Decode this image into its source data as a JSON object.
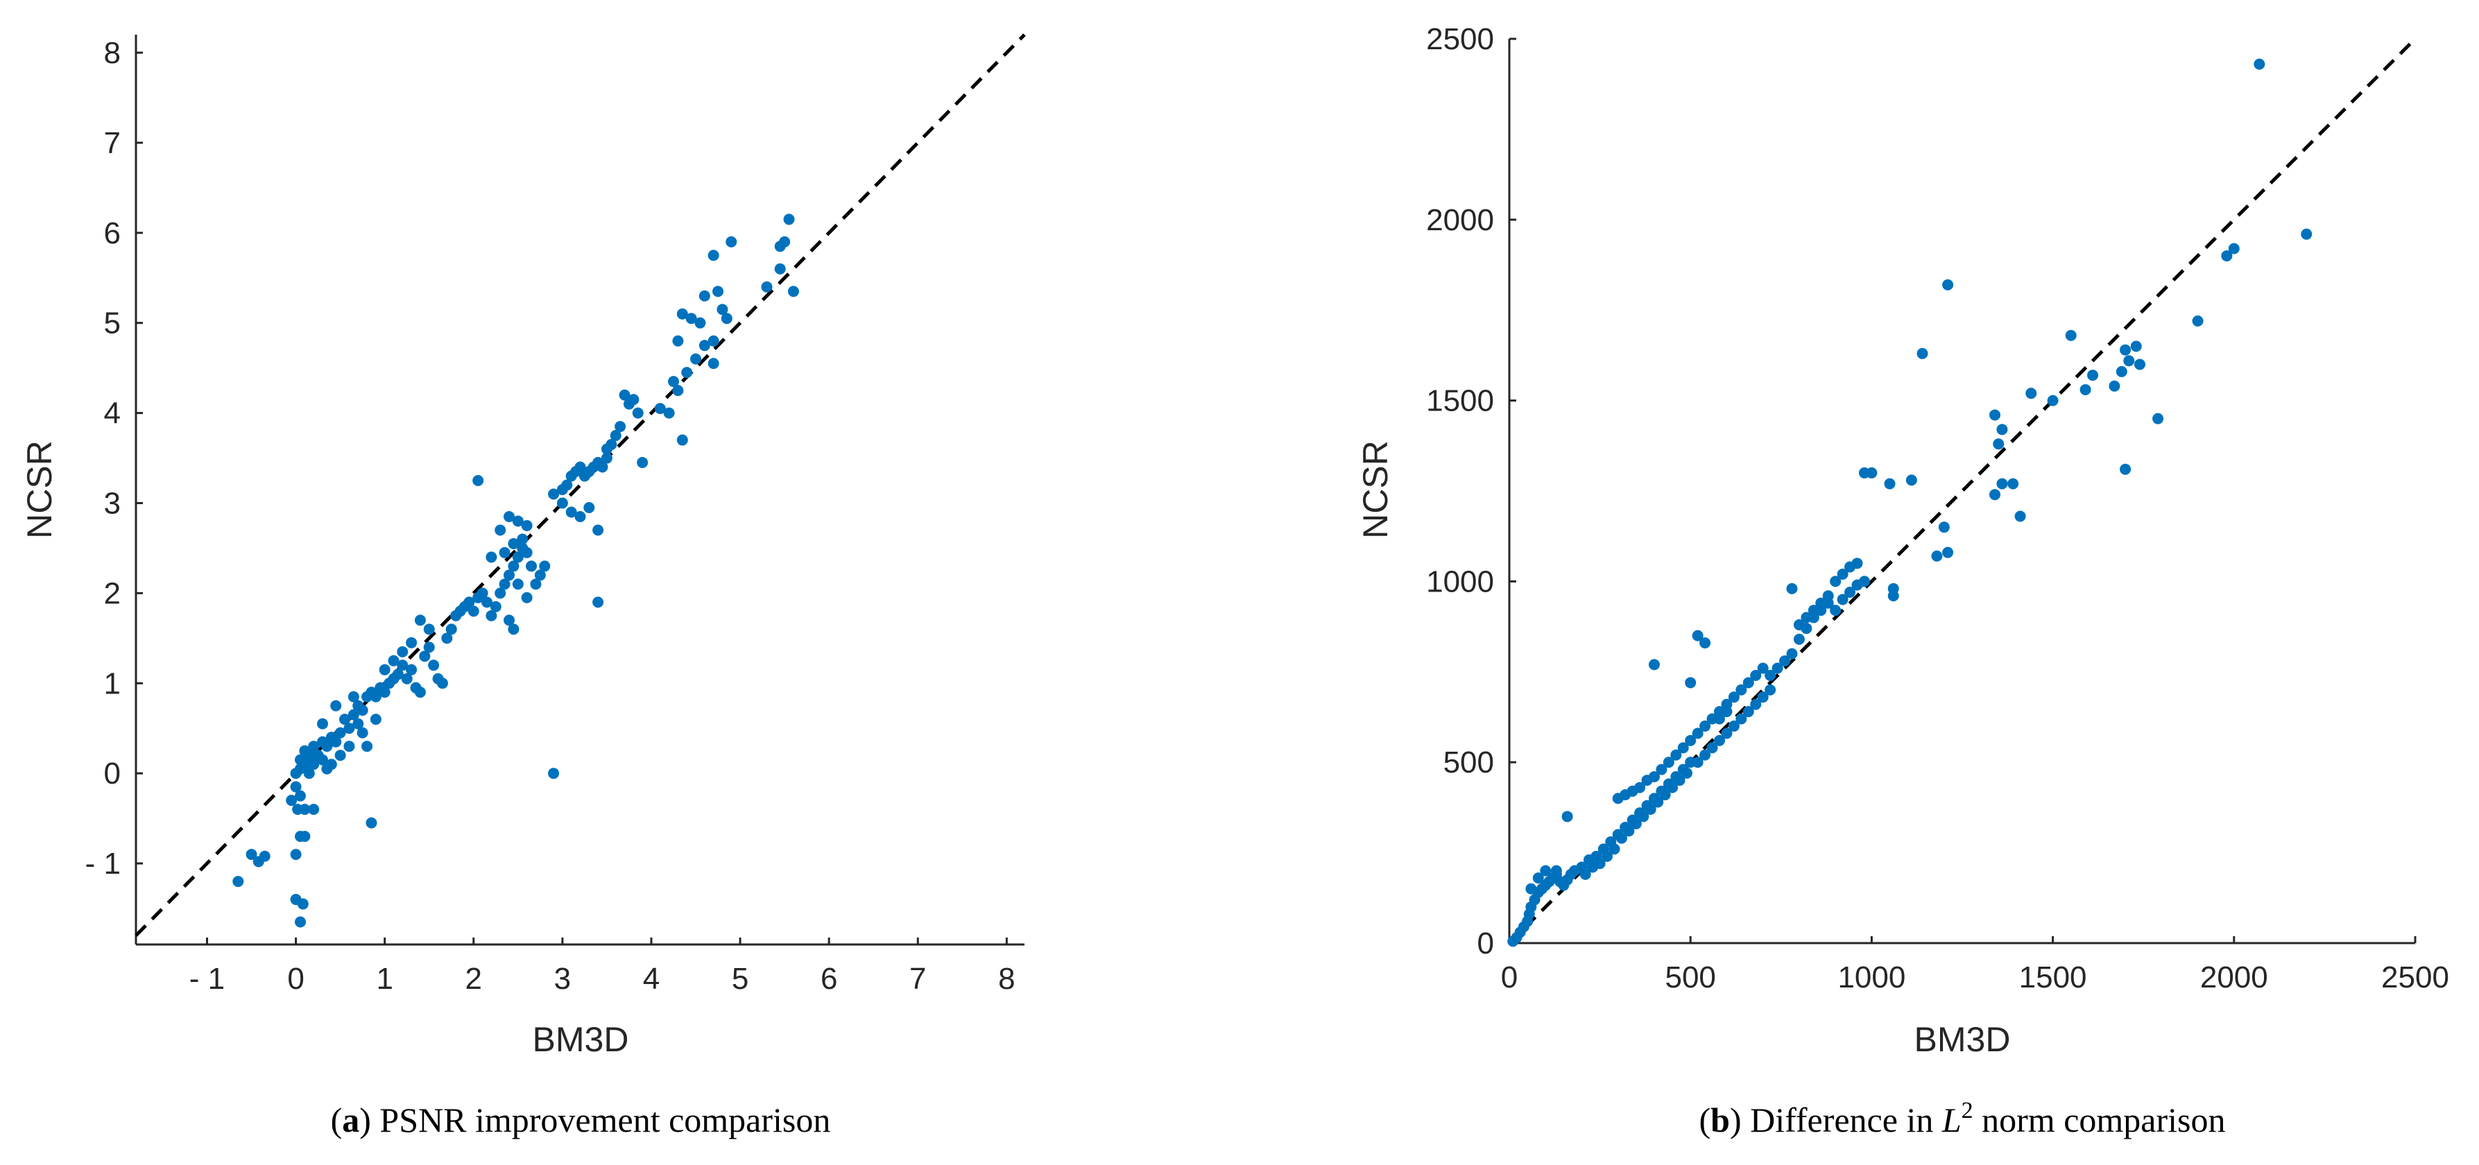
{
  "chart_data": [
    {
      "type": "scatter",
      "xlabel": "BM3D",
      "ylabel": "NCSR",
      "caption": {
        "letter": "a",
        "text": "PSNR improvement comparison"
      },
      "xlim": [
        -1.8,
        8.2
      ],
      "ylim": [
        -1.9,
        8.2
      ],
      "xticks": [
        -1,
        0,
        1,
        2,
        3,
        4,
        5,
        6,
        7,
        8
      ],
      "xtick_labels": [
        "- 1",
        "0",
        "1",
        "2",
        "3",
        "4",
        "5",
        "6",
        "7",
        "8"
      ],
      "yticks": [
        -1,
        0,
        1,
        2,
        3,
        4,
        5,
        6,
        7,
        8
      ],
      "ytick_labels": [
        "- 1",
        "0",
        "1",
        "2",
        "3",
        "4",
        "5",
        "6",
        "7",
        "8"
      ],
      "reference_line": "y = x (dashed)",
      "marker_color": "#0072BD",
      "points": [
        [
          -0.65,
          -1.2
        ],
        [
          -0.5,
          -0.9
        ],
        [
          -0.42,
          -0.98
        ],
        [
          -0.35,
          -0.92
        ],
        [
          0.0,
          -1.4
        ],
        [
          0.05,
          -1.65
        ],
        [
          0.08,
          -1.45
        ],
        [
          0.0,
          -0.9
        ],
        [
          0.05,
          -0.7
        ],
        [
          0.1,
          -0.7
        ],
        [
          0.02,
          -0.4
        ],
        [
          0.1,
          -0.4
        ],
        [
          0.2,
          -0.4
        ],
        [
          0.05,
          -0.25
        ],
        [
          -0.05,
          -0.3
        ],
        [
          0.0,
          -0.15
        ],
        [
          0.0,
          0.0
        ],
        [
          0.05,
          0.05
        ],
        [
          0.1,
          0.1
        ],
        [
          0.05,
          0.15
        ],
        [
          0.15,
          0.0
        ],
        [
          0.2,
          0.1
        ],
        [
          0.1,
          0.25
        ],
        [
          0.15,
          0.2
        ],
        [
          0.25,
          0.2
        ],
        [
          0.3,
          0.15
        ],
        [
          0.2,
          0.3
        ],
        [
          0.3,
          0.35
        ],
        [
          0.35,
          0.3
        ],
        [
          0.4,
          0.4
        ],
        [
          0.45,
          0.35
        ],
        [
          0.4,
          0.1
        ],
        [
          0.35,
          0.05
        ],
        [
          0.5,
          0.45
        ],
        [
          0.6,
          0.5
        ],
        [
          0.55,
          0.6
        ],
        [
          0.65,
          0.65
        ],
        [
          0.7,
          0.75
        ],
        [
          0.75,
          0.7
        ],
        [
          0.8,
          0.85
        ],
        [
          0.85,
          0.9
        ],
        [
          0.9,
          0.85
        ],
        [
          0.7,
          0.55
        ],
        [
          0.75,
          0.45
        ],
        [
          0.6,
          0.3
        ],
        [
          0.5,
          0.2
        ],
        [
          0.3,
          0.55
        ],
        [
          0.45,
          0.75
        ],
        [
          0.65,
          0.85
        ],
        [
          0.8,
          0.3
        ],
        [
          0.9,
          0.6
        ],
        [
          0.95,
          0.95
        ],
        [
          1.0,
          0.9
        ],
        [
          1.05,
          1.0
        ],
        [
          1.1,
          1.05
        ],
        [
          1.15,
          1.1
        ],
        [
          1.2,
          1.2
        ],
        [
          1.25,
          1.05
        ],
        [
          1.3,
          1.15
        ],
        [
          1.35,
          0.95
        ],
        [
          1.4,
          0.9
        ],
        [
          1.45,
          1.3
        ],
        [
          1.5,
          1.4
        ],
        [
          1.55,
          1.2
        ],
        [
          1.6,
          1.05
        ],
        [
          1.65,
          1.0
        ],
        [
          1.5,
          1.6
        ],
        [
          1.4,
          1.7
        ],
        [
          1.3,
          1.45
        ],
        [
          1.2,
          1.35
        ],
        [
          1.1,
          1.25
        ],
        [
          1.0,
          1.15
        ],
        [
          1.7,
          1.5
        ],
        [
          1.75,
          1.6
        ],
        [
          1.8,
          1.75
        ],
        [
          1.85,
          1.8
        ],
        [
          1.9,
          1.85
        ],
        [
          1.95,
          1.9
        ],
        [
          2.0,
          1.8
        ],
        [
          2.05,
          1.95
        ],
        [
          2.1,
          2.0
        ],
        [
          2.15,
          1.9
        ],
        [
          2.2,
          1.75
        ],
        [
          2.25,
          1.85
        ],
        [
          2.3,
          2.0
        ],
        [
          2.35,
          2.1
        ],
        [
          2.4,
          2.2
        ],
        [
          2.45,
          2.3
        ],
        [
          2.5,
          2.4
        ],
        [
          2.55,
          2.5
        ],
        [
          2.6,
          2.45
        ],
        [
          2.65,
          2.3
        ],
        [
          2.5,
          2.1
        ],
        [
          2.4,
          1.7
        ],
        [
          2.45,
          1.6
        ],
        [
          2.6,
          1.95
        ],
        [
          2.7,
          2.1
        ],
        [
          2.75,
          2.2
        ],
        [
          2.8,
          2.3
        ],
        [
          2.3,
          2.7
        ],
        [
          2.4,
          2.85
        ],
        [
          2.5,
          2.8
        ],
        [
          2.6,
          2.75
        ],
        [
          2.55,
          2.6
        ],
        [
          2.45,
          2.55
        ],
        [
          2.35,
          2.45
        ],
        [
          2.2,
          2.4
        ],
        [
          2.05,
          3.25
        ],
        [
          2.9,
          3.1
        ],
        [
          3.0,
          3.15
        ],
        [
          3.05,
          3.2
        ],
        [
          3.1,
          3.3
        ],
        [
          3.15,
          3.35
        ],
        [
          3.2,
          3.4
        ],
        [
          3.25,
          3.3
        ],
        [
          3.3,
          3.35
        ],
        [
          3.35,
          3.4
        ],
        [
          3.4,
          3.45
        ],
        [
          3.45,
          3.4
        ],
        [
          3.5,
          3.5
        ],
        [
          3.1,
          2.9
        ],
        [
          3.2,
          2.85
        ],
        [
          3.3,
          2.95
        ],
        [
          3.0,
          3.0
        ],
        [
          3.4,
          2.7
        ],
        [
          3.5,
          3.6
        ],
        [
          3.6,
          3.75
        ],
        [
          3.55,
          3.65
        ],
        [
          3.65,
          3.85
        ],
        [
          3.7,
          4.2
        ],
        [
          3.75,
          4.1
        ],
        [
          3.8,
          4.15
        ],
        [
          3.85,
          4.0
        ],
        [
          3.9,
          3.45
        ],
        [
          3.4,
          1.9
        ],
        [
          2.9,
          0.0
        ],
        [
          0.85,
          -0.55
        ],
        [
          4.1,
          4.05
        ],
        [
          4.2,
          4.0
        ],
        [
          4.25,
          4.35
        ],
        [
          4.3,
          4.25
        ],
        [
          4.35,
          3.7
        ],
        [
          4.4,
          4.45
        ],
        [
          4.5,
          4.6
        ],
        [
          4.6,
          4.75
        ],
        [
          4.7,
          4.8
        ],
        [
          4.3,
          4.8
        ],
        [
          4.35,
          5.1
        ],
        [
          4.45,
          5.05
        ],
        [
          4.55,
          5.0
        ],
        [
          4.6,
          5.3
        ],
        [
          4.75,
          5.35
        ],
        [
          4.7,
          4.55
        ],
        [
          4.8,
          5.15
        ],
        [
          4.85,
          5.05
        ],
        [
          4.9,
          5.9
        ],
        [
          4.7,
          5.75
        ],
        [
          5.3,
          5.4
        ],
        [
          5.45,
          5.6
        ],
        [
          5.5,
          5.9
        ],
        [
          5.55,
          6.15
        ],
        [
          5.6,
          5.35
        ],
        [
          5.45,
          5.85
        ]
      ]
    },
    {
      "type": "scatter",
      "xlabel": "BM3D",
      "ylabel": "NCSR",
      "caption": {
        "letter": "b",
        "text_before": "Difference in ",
        "math_base": "L",
        "math_sup": "2",
        "text_after": " norm comparison"
      },
      "xlim": [
        0,
        2500
      ],
      "ylim": [
        0,
        2500
      ],
      "xticks": [
        0,
        500,
        1000,
        1500,
        2000,
        2500
      ],
      "xtick_labels": [
        "0",
        "500",
        "1000",
        "1500",
        "2000",
        "2500"
      ],
      "yticks": [
        0,
        500,
        1000,
        1500,
        2000,
        2500
      ],
      "ytick_labels": [
        "0",
        "500",
        "1000",
        "1500",
        "2000",
        "2500"
      ],
      "reference_line": "y = x (dashed)",
      "marker_color": "#0072BD",
      "points": [
        [
          10,
          5
        ],
        [
          20,
          15
        ],
        [
          30,
          30
        ],
        [
          40,
          45
        ],
        [
          50,
          60
        ],
        [
          55,
          80
        ],
        [
          60,
          100
        ],
        [
          70,
          120
        ],
        [
          80,
          140
        ],
        [
          90,
          150
        ],
        [
          100,
          160
        ],
        [
          110,
          170
        ],
        [
          120,
          180
        ],
        [
          130,
          190
        ],
        [
          140,
          170
        ],
        [
          150,
          160
        ],
        [
          160,
          175
        ],
        [
          170,
          190
        ],
        [
          60,
          150
        ],
        [
          80,
          180
        ],
        [
          100,
          200
        ],
        [
          130,
          200
        ],
        [
          160,
          350
        ],
        [
          180,
          200
        ],
        [
          200,
          210
        ],
        [
          220,
          230
        ],
        [
          240,
          240
        ],
        [
          260,
          260
        ],
        [
          280,
          280
        ],
        [
          300,
          300
        ],
        [
          320,
          320
        ],
        [
          340,
          340
        ],
        [
          360,
          360
        ],
        [
          380,
          380
        ],
        [
          400,
          400
        ],
        [
          420,
          420
        ],
        [
          440,
          440
        ],
        [
          460,
          460
        ],
        [
          480,
          480
        ],
        [
          500,
          500
        ],
        [
          210,
          190
        ],
        [
          230,
          210
        ],
        [
          250,
          220
        ],
        [
          270,
          240
        ],
        [
          290,
          260
        ],
        [
          310,
          290
        ],
        [
          330,
          310
        ],
        [
          350,
          330
        ],
        [
          370,
          350
        ],
        [
          390,
          370
        ],
        [
          410,
          390
        ],
        [
          430,
          410
        ],
        [
          450,
          430
        ],
        [
          470,
          450
        ],
        [
          490,
          470
        ],
        [
          300,
          400
        ],
        [
          320,
          410
        ],
        [
          340,
          420
        ],
        [
          360,
          430
        ],
        [
          380,
          450
        ],
        [
          400,
          460
        ],
        [
          420,
          480
        ],
        [
          440,
          500
        ],
        [
          460,
          520
        ],
        [
          480,
          540
        ],
        [
          500,
          560
        ],
        [
          520,
          580
        ],
        [
          540,
          600
        ],
        [
          560,
          620
        ],
        [
          580,
          640
        ],
        [
          600,
          660
        ],
        [
          620,
          680
        ],
        [
          640,
          700
        ],
        [
          660,
          720
        ],
        [
          680,
          740
        ],
        [
          700,
          760
        ],
        [
          720,
          740
        ],
        [
          740,
          760
        ],
        [
          760,
          780
        ],
        [
          780,
          800
        ],
        [
          520,
          500
        ],
        [
          540,
          520
        ],
        [
          560,
          540
        ],
        [
          580,
          560
        ],
        [
          600,
          580
        ],
        [
          620,
          600
        ],
        [
          640,
          620
        ],
        [
          660,
          640
        ],
        [
          680,
          660
        ],
        [
          700,
          680
        ],
        [
          720,
          700
        ],
        [
          400,
          770
        ],
        [
          500,
          720
        ],
        [
          520,
          850
        ],
        [
          540,
          830
        ],
        [
          580,
          620
        ],
        [
          600,
          640
        ],
        [
          800,
          840
        ],
        [
          820,
          870
        ],
        [
          840,
          900
        ],
        [
          860,
          920
        ],
        [
          880,
          940
        ],
        [
          900,
          920
        ],
        [
          920,
          950
        ],
        [
          940,
          970
        ],
        [
          960,
          990
        ],
        [
          980,
          1000
        ],
        [
          800,
          880
        ],
        [
          820,
          900
        ],
        [
          840,
          920
        ],
        [
          860,
          940
        ],
        [
          880,
          960
        ],
        [
          900,
          1000
        ],
        [
          920,
          1020
        ],
        [
          940,
          1040
        ],
        [
          960,
          1050
        ],
        [
          780,
          980
        ],
        [
          980,
          1300
        ],
        [
          1000,
          1300
        ],
        [
          1050,
          1270
        ],
        [
          1060,
          980
        ],
        [
          1060,
          960
        ],
        [
          1110,
          1280
        ],
        [
          1140,
          1630
        ],
        [
          1180,
          1070
        ],
        [
          1210,
          1820
        ],
        [
          1200,
          1150
        ],
        [
          1210,
          1080
        ],
        [
          1340,
          1460
        ],
        [
          1350,
          1380
        ],
        [
          1360,
          1420
        ],
        [
          1340,
          1240
        ],
        [
          1360,
          1270
        ],
        [
          1390,
          1270
        ],
        [
          1410,
          1180
        ],
        [
          1440,
          1520
        ],
        [
          1500,
          1500
        ],
        [
          1550,
          1680
        ],
        [
          1590,
          1530
        ],
        [
          1610,
          1570
        ],
        [
          1670,
          1540
        ],
        [
          1690,
          1580
        ],
        [
          1700,
          1640
        ],
        [
          1710,
          1610
        ],
        [
          1730,
          1650
        ],
        [
          1740,
          1600
        ],
        [
          1700,
          1310
        ],
        [
          1790,
          1450
        ],
        [
          1900,
          1720
        ],
        [
          1980,
          1900
        ],
        [
          2000,
          1920
        ],
        [
          2070,
          2430
        ],
        [
          2200,
          1960
        ]
      ]
    }
  ]
}
